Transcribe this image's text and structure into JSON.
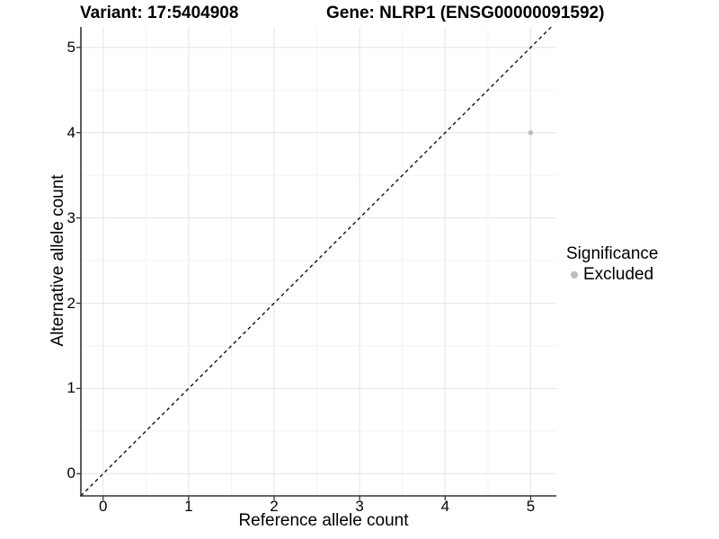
{
  "chart_data": {
    "type": "scatter",
    "title": "Variant: 17:5404908        Gene: NLRP1 (ENSG00000091592)",
    "title_left": "Variant: 17:5404908",
    "title_right": "Gene: NLRP1 (ENSG00000091592)",
    "xlabel": "Reference allele count",
    "ylabel": "Alternative allele count",
    "xlim": [
      -0.26,
      5.3
    ],
    "ylim": [
      -0.26,
      5.24
    ],
    "xticks": [
      0,
      1,
      2,
      3,
      4,
      5
    ],
    "yticks": [
      0,
      1,
      2,
      3,
      4,
      5
    ],
    "x_minor_breaks": [
      0.5,
      1.5,
      2.5,
      3.5,
      4.5
    ],
    "y_minor_breaks": [
      0.5,
      1.5,
      2.5,
      3.5,
      4.5
    ],
    "grid": "major-and-minor",
    "reference_line": {
      "slope": 1,
      "intercept": 0,
      "style": "dashed",
      "color": "#111111"
    },
    "series": [
      {
        "name": "Excluded",
        "color": "#bdbdbd",
        "points": [
          {
            "x": 5,
            "y": 4
          }
        ]
      }
    ],
    "legend": {
      "title": "Significance",
      "position": "right",
      "items": [
        {
          "label": "Excluded",
          "color": "#bdbdbd",
          "marker": "circle"
        }
      ]
    }
  },
  "colors": {
    "background": "#ffffff",
    "major_grid": "#e6e6e6",
    "minor_grid": "#f2f2f2",
    "axis_line": "#333333",
    "text": "#000000",
    "point": "#bdbdbd",
    "dashed_line": "#111111"
  }
}
